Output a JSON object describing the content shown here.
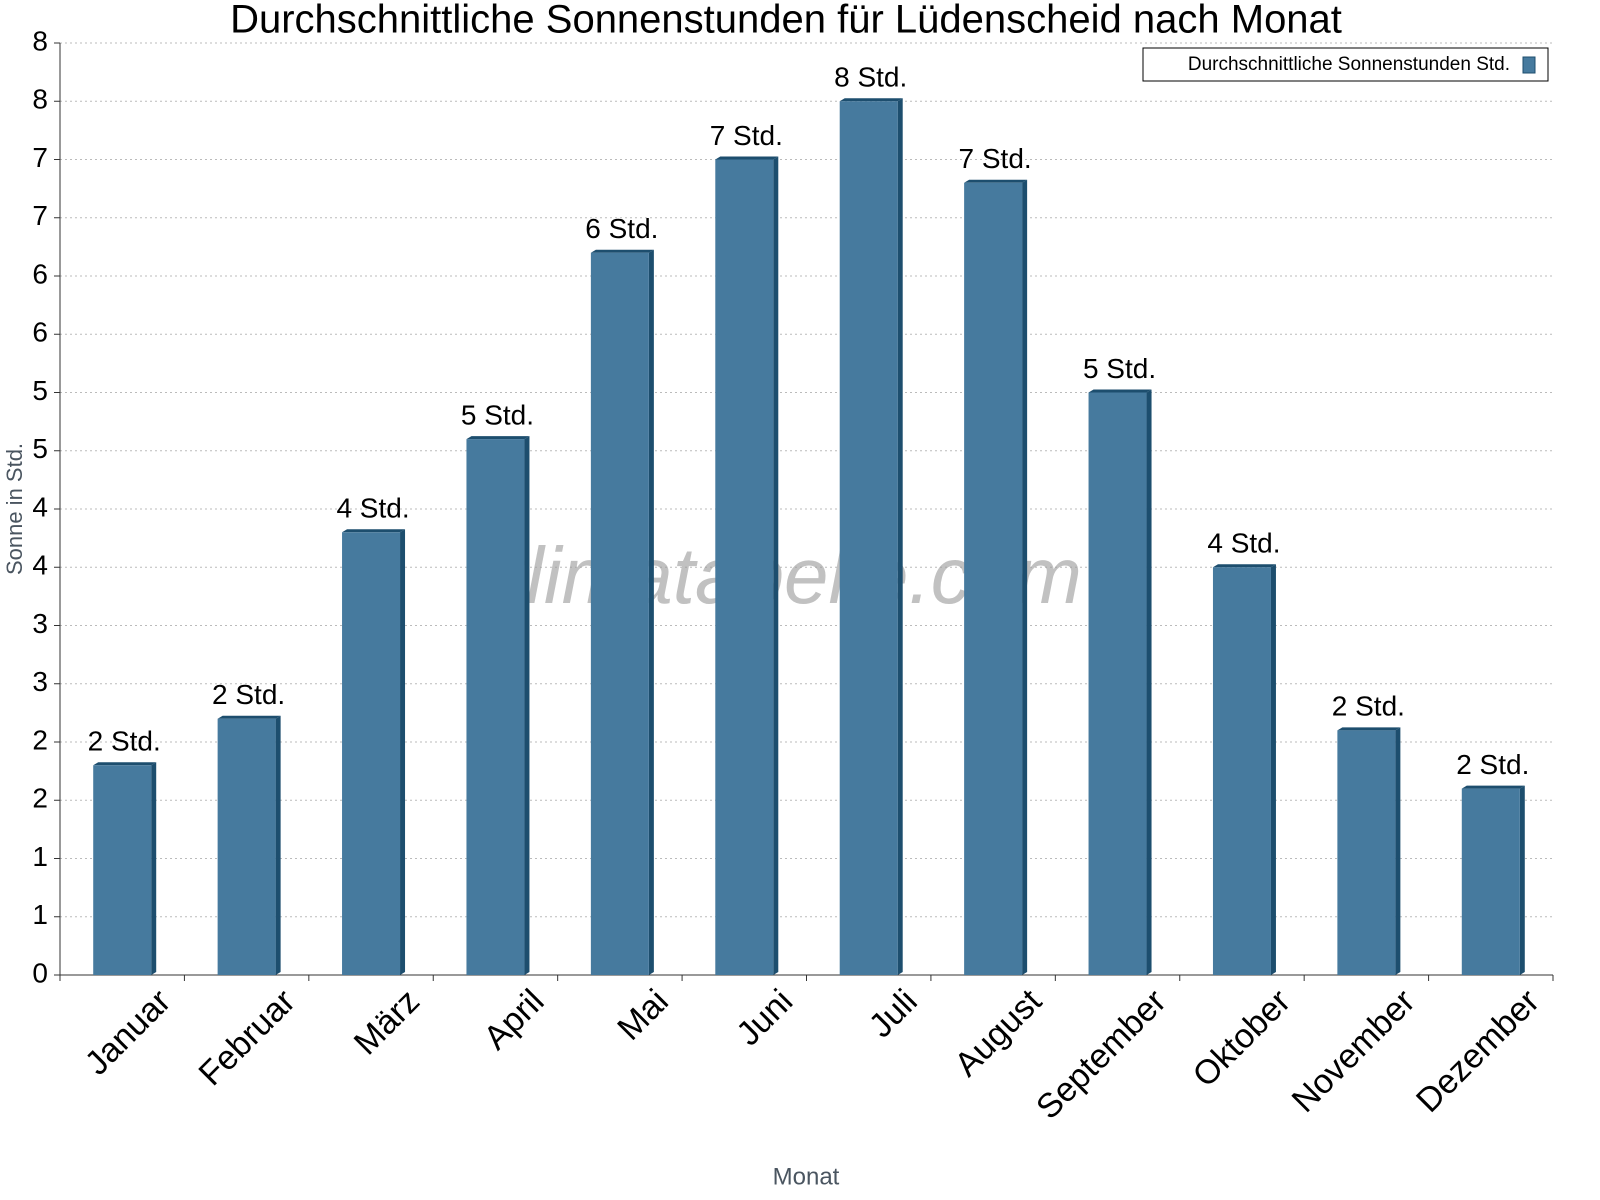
{
  "chart_data": {
    "type": "bar",
    "title": "Durchschnittliche Sonnenstunden für Lüdenscheid nach Monat",
    "x_label": "Monat",
    "y_label": "Sonne in Std.",
    "watermark": "klimatabelle.com",
    "categories": [
      "Januar",
      "Februar",
      "März",
      "April",
      "Mai",
      "Juni",
      "Juli",
      "August",
      "September",
      "Oktober",
      "November",
      "Dezember"
    ],
    "series": [
      {
        "name": "Durchschnittliche Sonnenstunden Std.",
        "color": "#467a9e",
        "values": [
          1.8,
          2.2,
          3.8,
          4.6,
          6.2,
          7,
          7.5,
          6.8,
          5,
          3.5,
          2.1,
          1.6
        ],
        "value_labels": [
          "2 Std.",
          "2 Std.",
          "4 Std.",
          "5 Std.",
          "6 Std.",
          "7 Std.",
          "8 Std.",
          "7 Std.",
          "5 Std.",
          "4 Std.",
          "2 Std.",
          "2 Std."
        ]
      }
    ],
    "ylim": [
      0,
      8
    ],
    "yticks": [
      0,
      {
        "value": 0.5,
        "label": "1"
      },
      1,
      {
        "value": 1.5,
        "label": "2"
      },
      2,
      {
        "value": 2.5,
        "label": "3"
      },
      3,
      {
        "value": 3.5,
        "label": "4"
      },
      4,
      {
        "value": 4.5,
        "label": "5"
      },
      5,
      {
        "value": 5.5,
        "label": "6"
      },
      6,
      {
        "value": 6.5,
        "label": "7"
      },
      7,
      {
        "value": 7.5,
        "label": "8"
      },
      8
    ],
    "grid": true,
    "legend": "top-right"
  }
}
